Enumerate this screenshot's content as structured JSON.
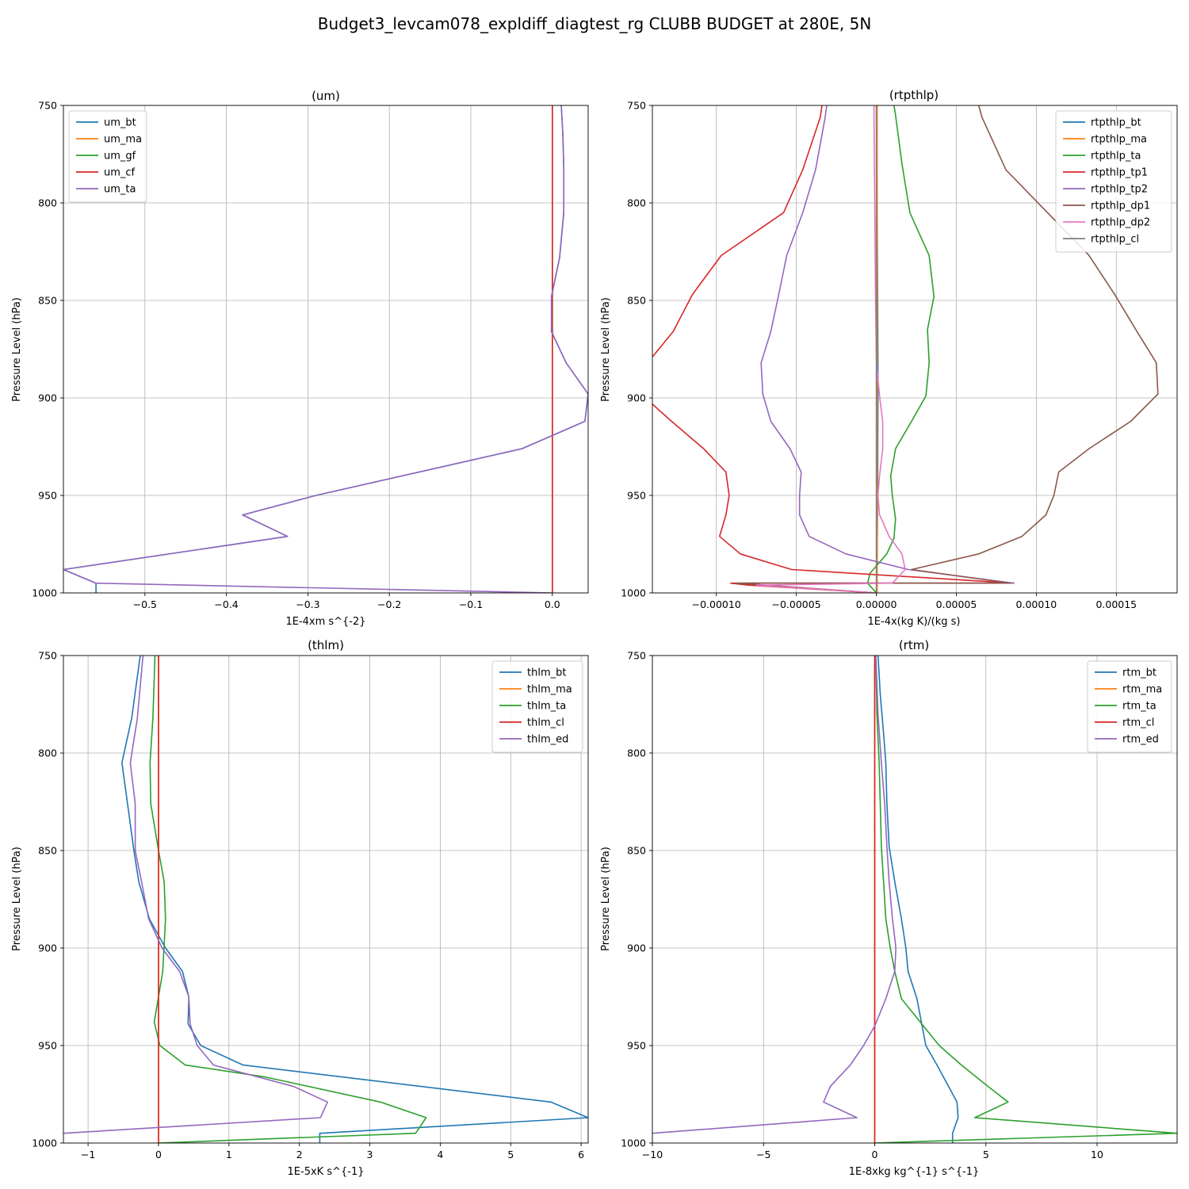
{
  "figure": {
    "title": "Budget3_levcam078_expldiff_diagtest_rg CLUBB BUDGET at 280E, 5N"
  },
  "chart_data": [
    {
      "type": "line",
      "title": "(um)",
      "xlabel": "1E-4xm s^{-2}",
      "ylabel": "Pressure Level (hPa)",
      "xlim": [
        -0.6,
        0.044
      ],
      "ylim": [
        1000,
        750
      ],
      "xticks": [
        -0.5,
        -0.4,
        -0.3,
        -0.2,
        -0.1,
        0.0
      ],
      "xtick_labels": [
        "−0.5",
        "−0.4",
        "−0.3",
        "−0.2",
        "−0.1",
        "0.0"
      ],
      "yticks": [
        750,
        800,
        850,
        900,
        950,
        1000
      ],
      "ytick_labels": [
        "750",
        "800",
        "850",
        "900",
        "950",
        "1000"
      ],
      "grid": true,
      "legend_position": "top-left",
      "series": [
        {
          "name": "um_bt",
          "color": "#1f77b4",
          "x": [
            0.011,
            0.013,
            0.014,
            0.014,
            0.009,
            -0.001,
            -0.001,
            0.017,
            0.044,
            0.04,
            -0.037,
            -0.29,
            -0.38,
            -0.325,
            -0.6,
            -0.56,
            -0.56
          ],
          "y": [
            750,
            765,
            782,
            805,
            828,
            848,
            866,
            882,
            898,
            912,
            926,
            950,
            960,
            971,
            988,
            995,
            1000
          ]
        },
        {
          "name": "um_ma",
          "color": "#ff7f0e",
          "x": [
            0.0,
            0.0
          ],
          "y": [
            750,
            1000
          ]
        },
        {
          "name": "um_gf",
          "color": "#2ca02c",
          "x": [
            0.0,
            0.0
          ],
          "y": [
            750,
            1000
          ]
        },
        {
          "name": "um_cf",
          "color": "#d62728",
          "x": [
            0.0,
            0.0
          ],
          "y": [
            750,
            1000
          ]
        },
        {
          "name": "um_ta",
          "color": "#9467bd",
          "x": [
            0.011,
            0.013,
            0.014,
            0.014,
            0.009,
            -0.001,
            -0.001,
            0.017,
            0.044,
            0.04,
            -0.037,
            -0.29,
            -0.38,
            -0.325,
            -0.6,
            -0.56,
            0.0
          ],
          "y": [
            750,
            765,
            782,
            805,
            828,
            848,
            866,
            882,
            898,
            912,
            926,
            950,
            960,
            971,
            988,
            995,
            1000
          ]
        }
      ]
    },
    {
      "type": "line",
      "title": "(rtpthlp)",
      "xlabel": "1E-4x(kg K)/(kg s)",
      "ylabel": "Pressure Level (hPa)",
      "xlim": [
        -0.00014,
        0.000188
      ],
      "ylim": [
        1000,
        750
      ],
      "xticks": [
        -0.0001,
        -5e-05,
        0.0,
        5e-05,
        0.0001,
        0.00015
      ],
      "xtick_labels": [
        "−0.00010",
        "−0.00005",
        "0.00000",
        "0.00005",
        "0.00010",
        "0.00015"
      ],
      "yticks": [
        750,
        800,
        850,
        900,
        950,
        1000
      ],
      "ytick_labels": [
        "750",
        "800",
        "850",
        "900",
        "950",
        "1000"
      ],
      "grid": true,
      "legend_position": "top-right",
      "series": [
        {
          "name": "rtpthlp_bt",
          "color": "#1f77b4",
          "x": [
            0.0,
            5e-07,
            8e-07,
            1e-06,
            1e-06,
            8e-07,
            5e-07,
            0.0
          ],
          "y": [
            750,
            800,
            850,
            880,
            900,
            950,
            980,
            1000
          ]
        },
        {
          "name": "rtpthlp_ma",
          "color": "#ff7f0e",
          "x": [
            5e-07,
            5e-07
          ],
          "y": [
            750,
            1000
          ]
        },
        {
          "name": "rtpthlp_ta",
          "color": "#2ca02c",
          "x": [
            1.1e-05,
            1.2e-05,
            1.6e-05,
            2.1e-05,
            3.3e-05,
            3.6e-05,
            3.2e-05,
            3.3e-05,
            3.1e-05,
            2.2e-05,
            1.2e-05,
            9e-06,
            1e-05,
            1.2e-05,
            1.1e-05,
            6.5e-06,
            -4e-06,
            -5.5e-06,
            0.0
          ],
          "y": [
            750,
            755,
            780,
            805,
            827,
            848,
            865,
            882,
            899,
            912,
            926,
            940,
            950,
            962,
            972,
            980,
            990,
            995,
            1000
          ]
        },
        {
          "name": "rtpthlp_tp1",
          "color": "#d62728",
          "x": [
            -3.4e-05,
            -3.5e-05,
            -4.6e-05,
            -5.8e-05,
            -9.7e-05,
            -0.000115,
            -0.000127,
            -0.000143,
            -0.000147,
            -0.000128,
            -0.000108,
            -9.4e-05,
            -9.2e-05,
            -9.4e-05,
            -9.8e-05,
            -8.5e-05,
            -5.3e-05,
            8.6e-05,
            -9.1e-05,
            -8e-05,
            0.0
          ],
          "y": [
            750,
            756,
            783,
            805,
            827,
            847,
            866,
            882,
            898,
            912,
            926,
            938,
            950,
            960,
            971,
            980,
            988,
            995,
            995,
            996,
            1000
          ]
        },
        {
          "name": "rtpthlp_tp2",
          "color": "#9467bd",
          "x": [
            -3.1e-05,
            -3.2e-05,
            -3.8e-05,
            -4.6e-05,
            -5.6e-05,
            -6.1e-05,
            -6.6e-05,
            -7.2e-05,
            -7.1e-05,
            -6.6e-05,
            -5.4e-05,
            -4.7e-05,
            -4.8e-05,
            -4.8e-05,
            -4.2e-05,
            -1.9e-05,
            2e-05,
            8.6e-05,
            -8.2e-05,
            -7e-05,
            0.0
          ],
          "y": [
            750,
            756,
            783,
            805,
            827,
            847,
            866,
            882,
            898,
            912,
            926,
            938,
            950,
            960,
            971,
            980,
            988,
            995,
            995,
            996,
            1000
          ]
        },
        {
          "name": "rtpthlp_dp1",
          "color": "#8c564b",
          "x": [
            6.4e-05,
            6.6e-05,
            8.1e-05,
            0.000107,
            0.000133,
            0.000149,
            0.000163,
            0.000175,
            0.000176,
            0.000159,
            0.000133,
            0.000114,
            0.000111,
            0.000106,
            9.1e-05,
            6.4e-05,
            2.2e-05,
            8.4e-05,
            -8.8e-05,
            -7e-05,
            0.0
          ],
          "y": [
            750,
            756,
            783,
            805,
            827,
            847,
            866,
            882,
            898,
            912,
            926,
            938,
            950,
            960,
            971,
            980,
            988,
            995,
            995,
            996,
            1000
          ]
        },
        {
          "name": "rtpthlp_dp2",
          "color": "#e377c2",
          "x": [
            -1.5e-06,
            -1e-06,
            -5e-07,
            0.0,
            1e-06,
            2e-06,
            4e-06,
            4e-06,
            2e-06,
            1e-06,
            2e-06,
            8e-06,
            1.6e-05,
            1.8e-05,
            1e-05,
            -7.5e-05,
            0.0
          ],
          "y": [
            750,
            800,
            850,
            880,
            890,
            899,
            912,
            926,
            940,
            950,
            960,
            971,
            980,
            988,
            995,
            996,
            1000
          ]
        },
        {
          "name": "rtpthlp_cl",
          "color": "#7f7f7f",
          "x": [
            0.0,
            0.0
          ],
          "y": [
            750,
            1000
          ]
        }
      ]
    },
    {
      "type": "line",
      "title": "(thlm)",
      "xlabel": "1E-5xK s^{-1}",
      "ylabel": "Pressure Level (hPa)",
      "xlim": [
        -1.35,
        6.1
      ],
      "ylim": [
        1000,
        750
      ],
      "xticks": [
        -1,
        0,
        1,
        2,
        3,
        4,
        5,
        6
      ],
      "xtick_labels": [
        "−1",
        "0",
        "1",
        "2",
        "3",
        "4",
        "5",
        "6"
      ],
      "yticks": [
        750,
        800,
        850,
        900,
        950,
        1000
      ],
      "ytick_labels": [
        "750",
        "800",
        "850",
        "900",
        "950",
        "1000"
      ],
      "grid": true,
      "legend_position": "top-right",
      "series": [
        {
          "name": "thlm_bt",
          "color": "#1f77b4",
          "x": [
            -0.26,
            -0.38,
            -0.52,
            -0.44,
            -0.35,
            -0.28,
            -0.13,
            0.1,
            0.34,
            0.43,
            0.42,
            0.6,
            1.2,
            5.57,
            6.1,
            2.3,
            2.29,
            2.29
          ],
          "y": [
            750,
            782,
            805,
            826,
            850,
            866,
            885,
            900,
            912,
            925,
            939,
            950,
            960,
            979,
            987,
            995,
            995,
            1000
          ]
        },
        {
          "name": "thlm_ma",
          "color": "#ff7f0e",
          "x": [
            0.0,
            0.0
          ],
          "y": [
            750,
            1000
          ]
        },
        {
          "name": "thlm_ta",
          "color": "#2ca02c",
          "x": [
            -0.05,
            -0.08,
            -0.12,
            -0.11,
            0.0,
            0.08,
            0.1,
            0.06,
            -0.06,
            0.02,
            0.38,
            1.5,
            3.15,
            3.8,
            3.65,
            0.0
          ],
          "y": [
            750,
            782,
            805,
            826,
            850,
            866,
            885,
            912,
            938,
            950,
            960,
            966,
            979,
            987,
            995,
            1000
          ]
        },
        {
          "name": "thlm_cl",
          "color": "#d62728",
          "x": [
            0.0,
            0.0
          ],
          "y": [
            750,
            1000
          ]
        },
        {
          "name": "thlm_ed",
          "color": "#9467bd",
          "x": [
            -0.22,
            -0.3,
            -0.4,
            -0.33,
            -0.33,
            -0.24,
            -0.14,
            0.05,
            0.3,
            0.43,
            0.45,
            0.55,
            0.78,
            1.92,
            2.4,
            2.3,
            -1.35
          ],
          "y": [
            750,
            782,
            805,
            826,
            850,
            866,
            885,
            900,
            912,
            925,
            939,
            950,
            960,
            971,
            979,
            987,
            995
          ]
        }
      ]
    },
    {
      "type": "line",
      "title": "(rtm)",
      "xlabel": "1E-8xkg kg^{-1} s^{-1}",
      "ylabel": "Pressure Level (hPa)",
      "xlim": [
        -10,
        13.6
      ],
      "ylim": [
        1000,
        750
      ],
      "xticks": [
        -10,
        -5,
        0,
        5,
        10
      ],
      "xtick_labels": [
        "−10",
        "−5",
        "0",
        "5",
        "10"
      ],
      "yticks": [
        750,
        800,
        850,
        900,
        950,
        1000
      ],
      "ytick_labels": [
        "750",
        "800",
        "850",
        "900",
        "950",
        "1000"
      ],
      "grid": true,
      "legend_position": "top-right",
      "series": [
        {
          "name": "rtm_bt",
          "color": "#1f77b4",
          "x": [
            0.15,
            0.25,
            0.4,
            0.5,
            0.55,
            0.65,
            0.9,
            1.2,
            1.4,
            1.5,
            1.9,
            2.3,
            2.8,
            3.7,
            3.75,
            3.5,
            3.5
          ],
          "y": [
            750,
            770,
            790,
            805,
            826,
            848,
            866,
            885,
            900,
            912,
            926,
            950,
            960,
            979,
            987,
            995,
            1000
          ]
        },
        {
          "name": "rtm_ma",
          "color": "#ff7f0e",
          "x": [
            0.0,
            0.0
          ],
          "y": [
            750,
            1000
          ]
        },
        {
          "name": "rtm_ta",
          "color": "#2ca02c",
          "x": [
            0.05,
            0.1,
            0.2,
            0.25,
            0.3,
            0.4,
            0.5,
            0.7,
            0.9,
            1.2,
            2.9,
            3.9,
            5.1,
            6.0,
            4.5,
            13.6,
            0.0
          ],
          "y": [
            750,
            780,
            805,
            826,
            848,
            866,
            885,
            900,
            912,
            926,
            950,
            960,
            971,
            979,
            987,
            995,
            1000
          ]
        },
        {
          "name": "rtm_cl",
          "color": "#d62728",
          "x": [
            0.0,
            0.0
          ],
          "y": [
            750,
            1000
          ]
        },
        {
          "name": "rtm_ed",
          "color": "#9467bd",
          "x": [
            0.05,
            0.15,
            0.3,
            0.45,
            0.55,
            0.65,
            0.8,
            0.95,
            0.9,
            0.5,
            0.0,
            -0.5,
            -1.1,
            -2.0,
            -2.3,
            -0.8,
            -10.0
          ],
          "y": [
            750,
            780,
            805,
            826,
            848,
            866,
            885,
            900,
            912,
            926,
            940,
            950,
            960,
            971,
            979,
            987,
            995
          ]
        }
      ]
    }
  ]
}
